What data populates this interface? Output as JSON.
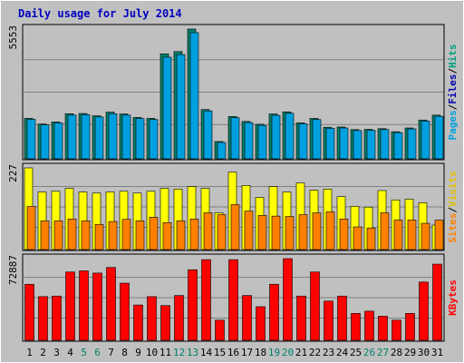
{
  "chart_data": {
    "type": "bar",
    "title": "Daily usage for July 2014",
    "days": [
      "1",
      "2",
      "3",
      "4",
      "5",
      "6",
      "7",
      "8",
      "9",
      "10",
      "11",
      "12",
      "13",
      "14",
      "15",
      "16",
      "17",
      "18",
      "19",
      "20",
      "21",
      "22",
      "23",
      "24",
      "25",
      "26",
      "27",
      "28",
      "29",
      "30",
      "31"
    ],
    "weekend_days": [
      "5",
      "6",
      "12",
      "13",
      "19",
      "20",
      "26",
      "27"
    ],
    "panels": [
      {
        "id": "pages-files-hits",
        "axis_max_label": "5553",
        "axis_max": 5553,
        "legend": [
          {
            "text": "Pages",
            "color": "#00a0e0"
          },
          {
            "text": "Files",
            "color": "#0000b0"
          },
          {
            "text": "Hits",
            "color": "#00a080"
          }
        ],
        "series": [
          {
            "name": "Hits",
            "color": "#00806a",
            "values": [
              1730,
              1490,
              1580,
              1930,
              1940,
              1840,
              2000,
              1920,
              1770,
              1730,
              4490,
              4590,
              5553,
              2110,
              740,
              1810,
              1600,
              1480,
              1920,
              2010,
              1540,
              1730,
              1350,
              1360,
              1250,
              1260,
              1290,
              1160,
              1320,
              1660,
              1870
            ]
          },
          {
            "name": "Files",
            "color": "#00a0e0",
            "values": [
              1690,
              1450,
              1540,
              1870,
              1890,
              1790,
              1930,
              1870,
              1720,
              1680,
              4350,
              4460,
              5400,
              2050,
              700,
              1760,
              1550,
              1430,
              1860,
              1950,
              1500,
              1680,
              1310,
              1320,
              1210,
              1220,
              1250,
              1120,
              1280,
              1620,
              1820
            ]
          }
        ]
      },
      {
        "id": "visits-sites",
        "axis_max_label": "227",
        "axis_max": 227,
        "legend": [
          {
            "text": "Sites",
            "color": "#ff8000"
          },
          {
            "text": "Visits",
            "color": "#e0c000"
          }
        ],
        "series": [
          {
            "name": "Visits",
            "color": "#ffff00",
            "values": [
              227,
              160,
              162,
              170,
              160,
              157,
              160,
              162,
              157,
              162,
              170,
              168,
              175,
              170,
              102,
              215,
              178,
              145,
              175,
              160,
              185,
              165,
              168,
              147,
              120,
              118,
              164,
              138,
              140,
              130,
              68
            ]
          },
          {
            "name": "Sites",
            "color": "#ff8000",
            "values": [
              120,
              80,
              80,
              85,
              80,
              70,
              78,
              84,
              80,
              90,
              75,
              80,
              85,
              102,
              97,
              125,
              107,
              95,
              93,
              92,
              97,
              102,
              105,
              85,
              63,
              60,
              102,
              82,
              82,
              73,
              82
            ]
          }
        ]
      },
      {
        "id": "kbytes",
        "axis_max_label": "72887",
        "axis_max": 72887,
        "legend": [
          {
            "text": "KBytes",
            "color": "#ff0000"
          }
        ],
        "series": [
          {
            "name": "KBytes",
            "color": "#ff0000",
            "values": [
              50000,
              39000,
              39500,
              61000,
              62000,
              60000,
              65000,
              51000,
              31500,
              39000,
              31000,
              40000,
              63000,
              72000,
              18000,
              72000,
              40000,
              30000,
              50000,
              74000,
              39500,
              61000,
              35000,
              39500,
              24000,
              26000,
              21500,
              18000,
              24000,
              52000,
              68000
            ]
          }
        ]
      }
    ]
  }
}
